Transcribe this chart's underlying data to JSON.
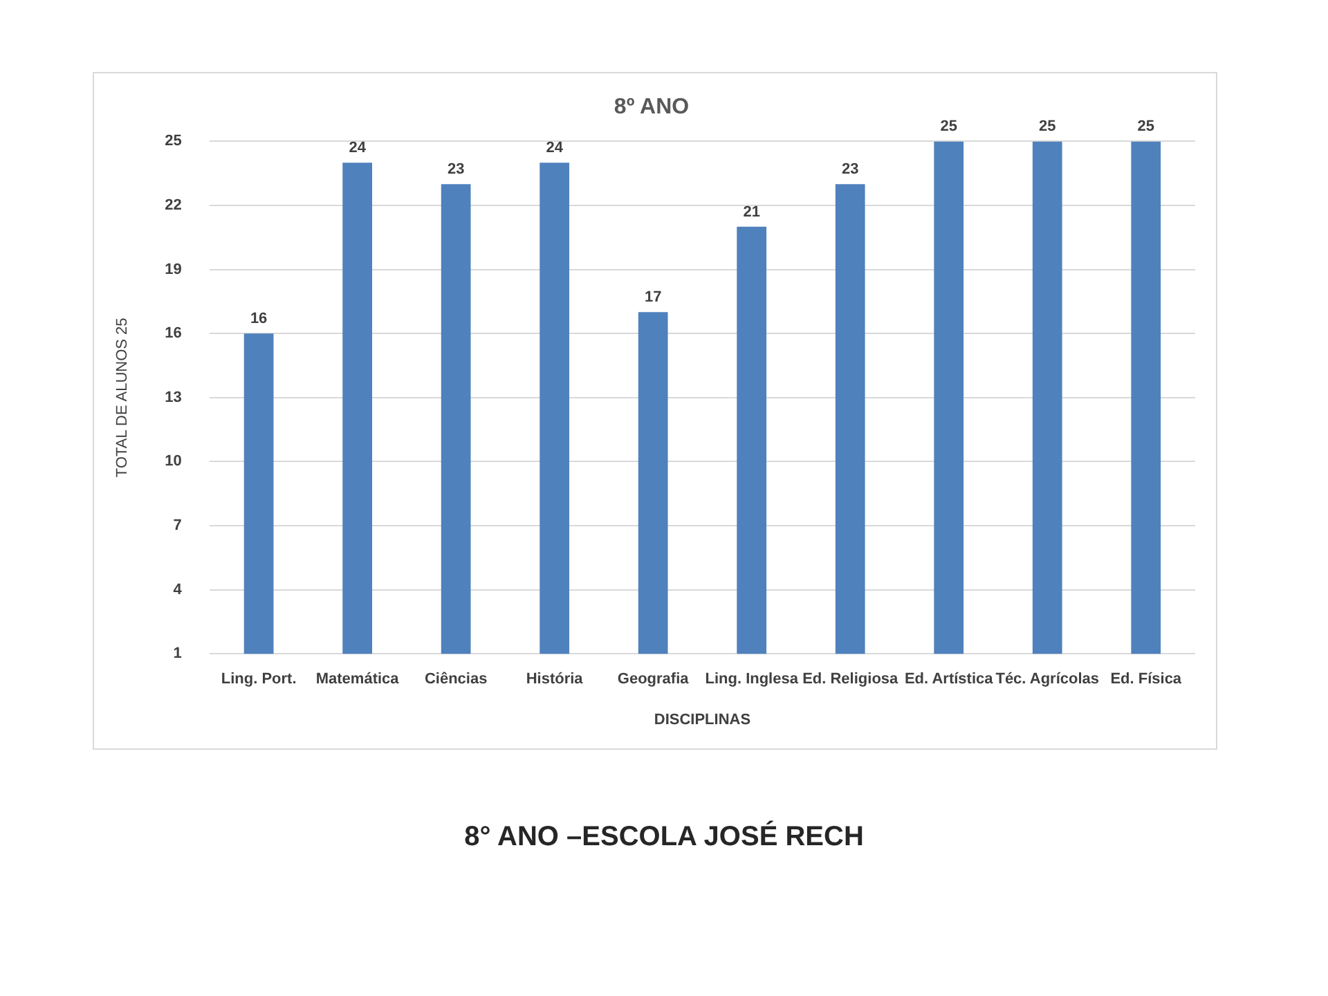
{
  "chart_data": {
    "type": "bar",
    "title": "8º ANO",
    "xlabel": "DISCIPLINAS",
    "ylabel": "TOTAL DE ALUNOS 25",
    "categories": [
      "Ling. Port.",
      "Matemática",
      "Ciências",
      "História",
      "Geografia",
      "Ling. Inglesa",
      "Ed. Religiosa",
      "Ed. Artística",
      "Téc. Agrícolas",
      "Ed. Física"
    ],
    "series": [
      {
        "color": "#4f81bd",
        "values": [
          16,
          24,
          23,
          24,
          17,
          21,
          23,
          25,
          25,
          25
        ]
      }
    ],
    "ylim": [
      1,
      25
    ],
    "yticks": [
      1,
      4,
      7,
      10,
      13,
      16,
      19,
      22,
      25
    ],
    "grid": "y",
    "data_labels": true,
    "legend": false,
    "annotations": [
      "8° ANO –ESCOLA JOSÉ RECH"
    ]
  }
}
